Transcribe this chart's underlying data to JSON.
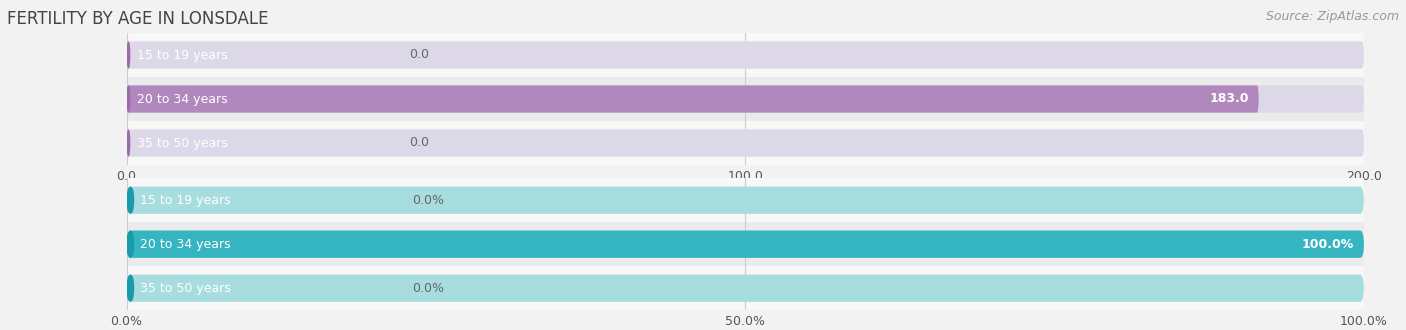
{
  "title": "FERTILITY BY AGE IN LONSDALE",
  "source": "Source: ZipAtlas.com",
  "background_color": "#f2f2f2",
  "top_chart": {
    "categories": [
      "15 to 19 years",
      "20 to 34 years",
      "35 to 50 years"
    ],
    "values": [
      0.0,
      183.0,
      0.0
    ],
    "bar_bg_color": "#ddd8e8",
    "bar_fill_color": "#b088be",
    "bar_left_cap_color": "#9a6aaa",
    "xlim": [
      0,
      200
    ],
    "xticks": [
      0.0,
      100.0,
      200.0
    ],
    "xtick_labels": [
      "0.0",
      "100.0",
      "200.0"
    ],
    "value_labels": [
      "0.0",
      "183.0",
      "0.0"
    ]
  },
  "bottom_chart": {
    "categories": [
      "15 to 19 years",
      "20 to 34 years",
      "35 to 50 years"
    ],
    "values": [
      0.0,
      100.0,
      0.0
    ],
    "bar_bg_color": "#a8dde0",
    "bar_fill_color": "#35b5bf",
    "bar_left_cap_color": "#1a9aaa",
    "xlim": [
      0,
      100
    ],
    "xticks": [
      0.0,
      50.0,
      100.0
    ],
    "xtick_labels": [
      "0.0%",
      "50.0%",
      "100.0%"
    ],
    "value_labels": [
      "0.0%",
      "100.0%",
      "0.0%"
    ]
  },
  "row_colors": [
    "#f8f8f8",
    "#ebebeb"
  ],
  "bar_height": 0.62,
  "label_fontsize": 9,
  "tick_fontsize": 9,
  "title_fontsize": 12,
  "source_fontsize": 9,
  "label_color": "#555555",
  "value_color_inside": "#ffffff",
  "value_color_outside": "#666666",
  "grid_color": "#cccccc"
}
